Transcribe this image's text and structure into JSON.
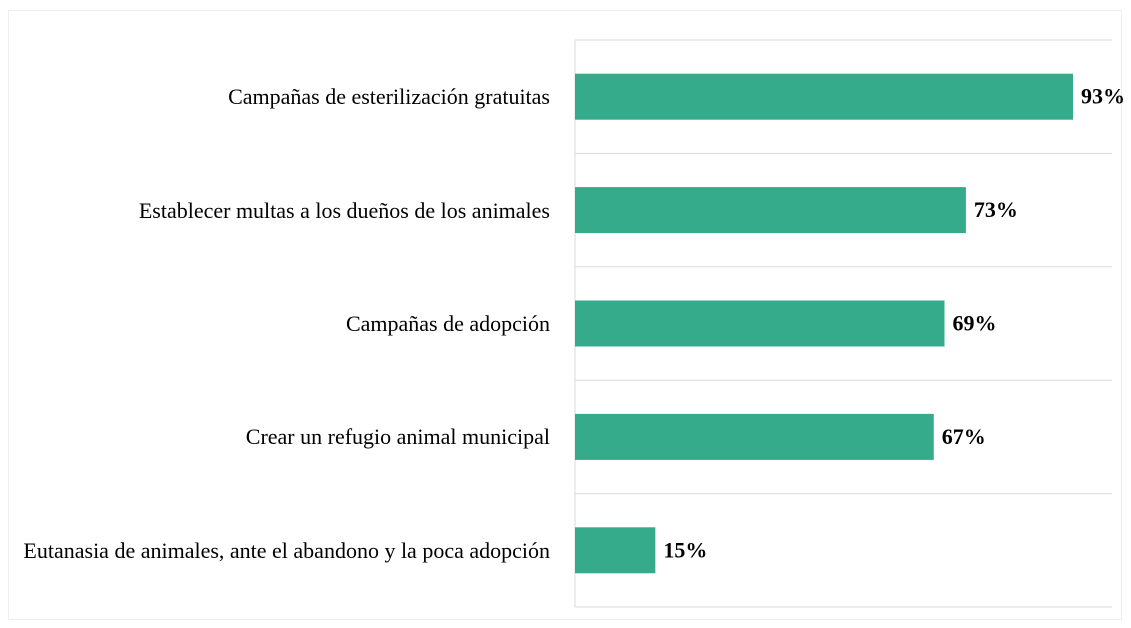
{
  "chart_data": {
    "type": "barh",
    "categories": [
      "Campañas de esterilización gratuitas",
      "Establecer multas a los dueños de los animales",
      "Campañas de adopción",
      "Crear un refugio animal municipal",
      "Eutanasia de animales, ante el abandono y la poca adopción"
    ],
    "values": [
      93,
      73,
      69,
      67,
      15
    ],
    "value_labels": [
      "93%",
      "73%",
      "69%",
      "67%",
      "15%"
    ],
    "color": "#36ab8b",
    "xlim": [
      0,
      100
    ]
  }
}
